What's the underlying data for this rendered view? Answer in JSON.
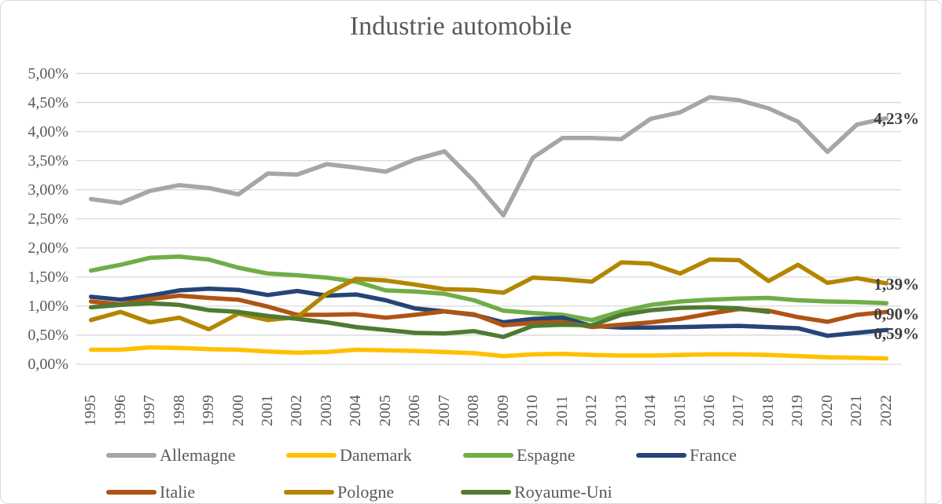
{
  "title": "Industrie automobile",
  "axis": {
    "y_tick_labels": [
      "0,00%",
      "0,50%",
      "1,00%",
      "1,50%",
      "2,00%",
      "2,50%",
      "3,00%",
      "3,50%",
      "4,00%",
      "4,50%",
      "5,00%"
    ],
    "x_tick_labels": [
      "1995",
      "1996",
      "1997",
      "1998",
      "1999",
      "2000",
      "2001",
      "2002",
      "2003",
      "2004",
      "2005",
      "2006",
      "2007",
      "2008",
      "2009",
      "2010",
      "2011",
      "2012",
      "2013",
      "2014",
      "2015",
      "2016",
      "2017",
      "2018",
      "2019",
      "2020",
      "2021",
      "2022"
    ]
  },
  "chart_data": {
    "type": "line",
    "title": "Industrie automobile",
    "categories": [
      1995,
      1996,
      1997,
      1998,
      1999,
      2000,
      2001,
      2002,
      2003,
      2004,
      2005,
      2006,
      2007,
      2008,
      2009,
      2010,
      2011,
      2012,
      2013,
      2014,
      2015,
      2016,
      2017,
      2018,
      2019,
      2020,
      2021,
      2022
    ],
    "ylim": [
      0,
      5
    ],
    "y_tick_step": 0.5,
    "unit": "percent",
    "decimal_style": "french_comma",
    "grid": "horizontal",
    "legend_position": "bottom",
    "series": [
      {
        "name": "Allemagne",
        "color": "#A6A6A6",
        "values": [
          2.84,
          2.77,
          2.98,
          3.08,
          3.03,
          2.92,
          3.28,
          3.26,
          3.44,
          3.38,
          3.31,
          3.52,
          3.66,
          3.15,
          2.56,
          3.55,
          3.89,
          3.89,
          3.87,
          4.22,
          4.33,
          4.59,
          4.54,
          4.4,
          4.17,
          3.65,
          4.12,
          4.23
        ]
      },
      {
        "name": "Danemark",
        "color": "#FFC000",
        "values": [
          0.25,
          0.25,
          0.29,
          0.28,
          0.26,
          0.25,
          0.22,
          0.2,
          0.21,
          0.25,
          0.24,
          0.23,
          0.21,
          0.19,
          0.14,
          0.17,
          0.18,
          0.16,
          0.15,
          0.15,
          0.16,
          0.17,
          0.17,
          0.16,
          0.14,
          0.12,
          0.11,
          0.1
        ]
      },
      {
        "name": "Espagne",
        "color": "#70AD47",
        "values": [
          1.61,
          1.71,
          1.83,
          1.85,
          1.8,
          1.66,
          1.56,
          1.53,
          1.49,
          1.42,
          1.27,
          1.25,
          1.21,
          1.1,
          0.92,
          0.88,
          0.85,
          0.76,
          0.91,
          1.02,
          1.08,
          1.11,
          1.13,
          1.14,
          1.1,
          1.08,
          1.07,
          1.05
        ]
      },
      {
        "name": "France",
        "color": "#264478",
        "values": [
          1.16,
          1.11,
          1.18,
          1.27,
          1.3,
          1.28,
          1.19,
          1.26,
          1.18,
          1.2,
          1.1,
          0.96,
          0.91,
          0.85,
          0.72,
          0.78,
          0.8,
          0.66,
          0.63,
          0.63,
          0.64,
          0.65,
          0.66,
          0.64,
          0.62,
          0.49,
          0.54,
          0.59
        ]
      },
      {
        "name": "Italie",
        "color": "#B05414",
        "values": [
          1.08,
          1.03,
          1.12,
          1.18,
          1.14,
          1.11,
          0.99,
          0.85,
          0.85,
          0.86,
          0.8,
          0.85,
          0.91,
          0.86,
          0.67,
          0.71,
          0.73,
          0.64,
          0.68,
          0.72,
          0.78,
          0.87,
          0.95,
          0.92,
          0.81,
          0.73,
          0.85,
          0.9
        ]
      },
      {
        "name": "Pologne",
        "color": "#B38600",
        "values": [
          0.76,
          0.9,
          0.72,
          0.8,
          0.6,
          0.87,
          0.76,
          0.81,
          1.21,
          1.47,
          1.44,
          1.37,
          1.29,
          1.28,
          1.23,
          1.49,
          1.46,
          1.42,
          1.75,
          1.73,
          1.56,
          1.8,
          1.79,
          1.43,
          1.71,
          1.4,
          1.48,
          1.39
        ]
      },
      {
        "name": "Royaume-Uni",
        "color": "#4F7A32",
        "values": [
          0.98,
          1.02,
          1.05,
          1.02,
          0.93,
          0.9,
          0.83,
          0.78,
          0.72,
          0.64,
          0.59,
          0.54,
          0.53,
          0.57,
          0.47,
          0.66,
          0.68,
          0.67,
          0.85,
          0.93,
          0.97,
          0.98,
          0.96,
          0.9,
          null,
          null,
          null,
          null
        ]
      }
    ],
    "end_labels": [
      {
        "series": "Allemagne",
        "text": "4,23%"
      },
      {
        "series": "Pologne",
        "text": "1,39%"
      },
      {
        "series": "Italie",
        "text": "0,90%"
      },
      {
        "series": "France",
        "text": "0,59%"
      }
    ]
  },
  "legend": {
    "row1": [
      "Allemagne",
      "Danemark",
      "Espagne",
      "France"
    ],
    "row2": [
      "Italie",
      "Pologne",
      "Royaume-Uni"
    ]
  }
}
